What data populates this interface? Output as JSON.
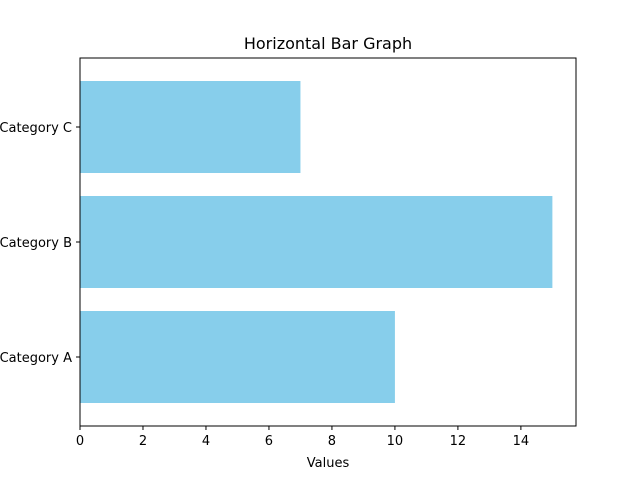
{
  "chart_data": {
    "type": "bar",
    "orientation": "horizontal",
    "title": "Horizontal Bar Graph",
    "xlabel": "Values",
    "ylabel": "",
    "categories": [
      "Category A",
      "Category B",
      "Category C"
    ],
    "values": [
      10,
      15,
      7
    ],
    "xlim": [
      0,
      15.75
    ],
    "xticks": [
      0,
      2,
      4,
      6,
      8,
      10,
      12,
      14
    ],
    "bar_color": "#87CEEB",
    "grid": false,
    "legend": "none"
  }
}
